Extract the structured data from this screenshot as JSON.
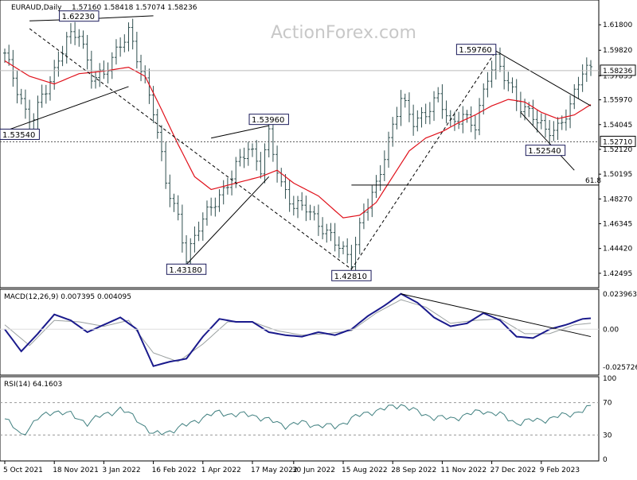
{
  "header": {
    "symbol": "EURAUD,Daily",
    "ohlc": "1.57160 1.58418 1.57074 1.58236"
  },
  "watermark": "ActionForex.com",
  "colors": {
    "candles": "#2f4f4f",
    "ma": "#e0101a",
    "trend_lines": "#000000",
    "macd": "#1a1a8c",
    "signal": "#9aa0a0",
    "rsi": "#3f7f7f",
    "price_box_bg": "#ffffff"
  },
  "chart_data": [
    {
      "type": "line",
      "name": "price",
      "title": "EURAUD,Daily",
      "ylim": [
        1.415,
        1.636
      ],
      "y_ticks": [
        "1.61800",
        "1.59820",
        "1.57835",
        "1.55970",
        "1.54045",
        "1.52120",
        "1.50195",
        "1.48270",
        "1.46345",
        "1.44420",
        "1.42495"
      ],
      "y_tick_values": [
        1.618,
        1.5982,
        1.57835,
        1.5597,
        1.54045,
        1.5212,
        1.50195,
        1.4827,
        1.46345,
        1.4442,
        1.42495
      ],
      "current_price_label": "1.58236",
      "current_price": 1.58236,
      "level_label": "1.52710",
      "level": 1.5271,
      "fib_label": "61.8",
      "fib_level": 1.4935,
      "annotations": [
        {
          "label": "1.62230",
          "index": 18,
          "value": 1.6223
        },
        {
          "label": "1.53540",
          "index": 0,
          "value": 1.5354
        },
        {
          "label": "1.43180",
          "index": 44,
          "value": 1.4318
        },
        {
          "label": "1.53960",
          "index": 64,
          "value": 1.5396
        },
        {
          "label": "1.42810",
          "index": 84,
          "value": 1.4281
        },
        {
          "label": "1.59760",
          "index": 119,
          "value": 1.5976
        },
        {
          "label": "1.52540",
          "index": 131,
          "value": 1.5254
        }
      ],
      "x_labels": [
        "5 Oct 2021",
        "18 Nov 2021",
        "3 Jan 2022",
        "16 Feb 2022",
        "1 Apr 2022",
        "17 May 2022",
        "30 Jun 2022",
        "15 Aug 2022",
        "28 Sep 2022",
        "11 Nov 2022",
        "27 Dec 2022",
        "9 Feb 2023"
      ],
      "x_label_index": [
        0,
        12,
        24,
        36,
        48,
        60,
        70,
        82,
        94,
        106,
        118,
        130
      ],
      "close_points": [
        [
          0,
          1.596
        ],
        [
          3,
          1.565
        ],
        [
          6,
          1.54
        ],
        [
          9,
          1.565
        ],
        [
          12,
          1.58
        ],
        [
          15,
          1.605
        ],
        [
          18,
          1.613
        ],
        [
          21,
          1.58
        ],
        [
          24,
          1.578
        ],
        [
          27,
          1.595
        ],
        [
          30,
          1.615
        ],
        [
          33,
          1.585
        ],
        [
          36,
          1.55
        ],
        [
          39,
          1.495
        ],
        [
          42,
          1.47
        ],
        [
          44,
          1.438
        ],
        [
          47,
          1.46
        ],
        [
          50,
          1.475
        ],
        [
          53,
          1.49
        ],
        [
          56,
          1.51
        ],
        [
          59,
          1.52
        ],
        [
          62,
          1.505
        ],
        [
          64,
          1.535
        ],
        [
          67,
          1.495
        ],
        [
          70,
          1.475
        ],
        [
          73,
          1.475
        ],
        [
          76,
          1.465
        ],
        [
          79,
          1.455
        ],
        [
          82,
          1.44
        ],
        [
          84,
          1.432
        ],
        [
          87,
          1.475
        ],
        [
          90,
          1.495
        ],
        [
          93,
          1.525
        ],
        [
          96,
          1.56
        ],
        [
          99,
          1.545
        ],
        [
          102,
          1.55
        ],
        [
          105,
          1.56
        ],
        [
          108,
          1.54
        ],
        [
          111,
          1.55
        ],
        [
          114,
          1.54
        ],
        [
          117,
          1.575
        ],
        [
          119,
          1.59
        ],
        [
          122,
          1.575
        ],
        [
          125,
          1.555
        ],
        [
          128,
          1.545
        ],
        [
          131,
          1.535
        ],
        [
          134,
          1.54
        ],
        [
          137,
          1.555
        ],
        [
          140,
          1.58
        ],
        [
          142,
          1.5824
        ]
      ],
      "ma_points": [
        [
          0,
          1.59
        ],
        [
          6,
          1.578
        ],
        [
          12,
          1.572
        ],
        [
          18,
          1.58
        ],
        [
          24,
          1.582
        ],
        [
          30,
          1.585
        ],
        [
          34,
          1.578
        ],
        [
          38,
          1.552
        ],
        [
          42,
          1.525
        ],
        [
          46,
          1.5
        ],
        [
          50,
          1.49
        ],
        [
          56,
          1.495
        ],
        [
          62,
          1.5
        ],
        [
          66,
          1.505
        ],
        [
          70,
          1.495
        ],
        [
          76,
          1.485
        ],
        [
          82,
          1.468
        ],
        [
          86,
          1.47
        ],
        [
          90,
          1.48
        ],
        [
          94,
          1.5
        ],
        [
          98,
          1.52
        ],
        [
          102,
          1.53
        ],
        [
          106,
          1.535
        ],
        [
          110,
          1.542
        ],
        [
          114,
          1.548
        ],
        [
          118,
          1.555
        ],
        [
          122,
          1.56
        ],
        [
          126,
          1.558
        ],
        [
          130,
          1.55
        ],
        [
          134,
          1.545
        ],
        [
          138,
          1.548
        ],
        [
          142,
          1.556
        ]
      ],
      "trend_lines": [
        {
          "from": [
            6,
            1.621
          ],
          "to": [
            18,
            1.6223
          ]
        },
        {
          "from": [
            18,
            1.6223
          ],
          "to": [
            36,
            1.625
          ]
        },
        {
          "from": [
            0,
            1.5354
          ],
          "to": [
            30,
            1.57
          ]
        },
        {
          "from": [
            6,
            1.615
          ],
          "to": [
            84,
            1.4281
          ]
        },
        {
          "from": [
            44,
            1.4318
          ],
          "to": [
            64,
            1.5
          ]
        },
        {
          "from": [
            50,
            1.53
          ],
          "to": [
            64,
            1.5396
          ]
        },
        {
          "from": [
            84,
            1.4281
          ],
          "to": [
            119,
            1.5976
          ]
        },
        {
          "from": [
            119,
            1.5976
          ],
          "to": [
            142,
            1.555
          ]
        },
        {
          "from": [
            125,
            1.55
          ],
          "to": [
            138,
            1.505
          ]
        }
      ]
    },
    {
      "type": "line",
      "name": "macd",
      "title": "MACD(12,26,9) 0.007395 0.004095",
      "ylim": [
        -0.03,
        0.026
      ],
      "y_ticks": [
        "0.023963",
        "0.00",
        "-0.025726"
      ],
      "y_tick_values": [
        0.023963,
        0.0,
        -0.025726
      ],
      "macd_points": [
        [
          0,
          0.0
        ],
        [
          4,
          -0.015
        ],
        [
          8,
          -0.003
        ],
        [
          12,
          0.01
        ],
        [
          16,
          0.006
        ],
        [
          20,
          -0.002
        ],
        [
          24,
          0.003
        ],
        [
          28,
          0.008
        ],
        [
          32,
          0.0
        ],
        [
          36,
          -0.025
        ],
        [
          40,
          -0.022
        ],
        [
          44,
          -0.02
        ],
        [
          48,
          -0.005
        ],
        [
          52,
          0.007
        ],
        [
          56,
          0.005
        ],
        [
          60,
          0.005
        ],
        [
          64,
          -0.002
        ],
        [
          68,
          -0.004
        ],
        [
          72,
          -0.005
        ],
        [
          76,
          -0.002
        ],
        [
          80,
          -0.004
        ],
        [
          84,
          0.0
        ],
        [
          88,
          0.009
        ],
        [
          92,
          0.016
        ],
        [
          96,
          0.024
        ],
        [
          100,
          0.018
        ],
        [
          104,
          0.008
        ],
        [
          108,
          0.002
        ],
        [
          112,
          0.004
        ],
        [
          116,
          0.011
        ],
        [
          120,
          0.006
        ],
        [
          124,
          -0.005
        ],
        [
          128,
          -0.006
        ],
        [
          132,
          0.0
        ],
        [
          136,
          0.003
        ],
        [
          140,
          0.007
        ],
        [
          142,
          0.0074
        ]
      ],
      "signal_points": [
        [
          0,
          0.003
        ],
        [
          6,
          -0.011
        ],
        [
          12,
          0.006
        ],
        [
          18,
          0.005
        ],
        [
          24,
          0.002
        ],
        [
          30,
          0.006
        ],
        [
          36,
          -0.016
        ],
        [
          42,
          -0.022
        ],
        [
          48,
          -0.01
        ],
        [
          54,
          0.005
        ],
        [
          60,
          0.005
        ],
        [
          66,
          -0.001
        ],
        [
          72,
          -0.004
        ],
        [
          78,
          -0.003
        ],
        [
          84,
          -0.001
        ],
        [
          90,
          0.011
        ],
        [
          96,
          0.02
        ],
        [
          102,
          0.015
        ],
        [
          108,
          0.004
        ],
        [
          114,
          0.006
        ],
        [
          120,
          0.007
        ],
        [
          126,
          -0.003
        ],
        [
          132,
          -0.003
        ],
        [
          138,
          0.003
        ],
        [
          142,
          0.0041
        ]
      ],
      "trend_line": {
        "from": [
          96,
          0.024
        ],
        "to": [
          142,
          -0.005
        ]
      }
    },
    {
      "type": "line",
      "name": "rsi",
      "title": "RSI(14) 64.1603",
      "ylim": [
        0,
        100
      ],
      "y_ticks": [
        "100",
        "70",
        "30",
        "0"
      ],
      "y_tick_values": [
        100,
        70,
        30,
        0
      ],
      "levels": [
        70,
        30
      ],
      "rsi_points": [
        [
          0,
          50
        ],
        [
          4,
          30
        ],
        [
          8,
          50
        ],
        [
          12,
          60
        ],
        [
          16,
          55
        ],
        [
          20,
          45
        ],
        [
          24,
          55
        ],
        [
          28,
          62
        ],
        [
          32,
          50
        ],
        [
          36,
          30
        ],
        [
          40,
          35
        ],
        [
          44,
          42
        ],
        [
          48,
          52
        ],
        [
          52,
          58
        ],
        [
          56,
          55
        ],
        [
          60,
          55
        ],
        [
          64,
          48
        ],
        [
          68,
          42
        ],
        [
          72,
          45
        ],
        [
          76,
          42
        ],
        [
          80,
          40
        ],
        [
          84,
          50
        ],
        [
          88,
          58
        ],
        [
          92,
          62
        ],
        [
          96,
          68
        ],
        [
          100,
          58
        ],
        [
          104,
          52
        ],
        [
          108,
          50
        ],
        [
          112,
          55
        ],
        [
          116,
          60
        ],
        [
          120,
          55
        ],
        [
          124,
          45
        ],
        [
          128,
          48
        ],
        [
          132,
          50
        ],
        [
          136,
          55
        ],
        [
          140,
          60
        ],
        [
          142,
          64.16
        ]
      ]
    }
  ]
}
